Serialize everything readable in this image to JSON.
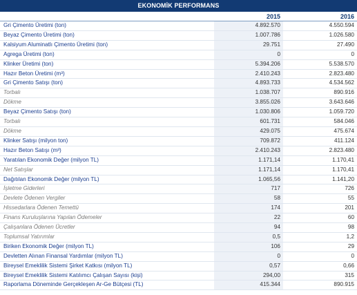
{
  "header": {
    "title": "EKONOMİK PERFORMANS",
    "col_2015": "2015",
    "col_2016": "2016"
  },
  "rows": [
    {
      "label": "Gri Çimento Üretimi (ton)",
      "v2015": "4.892.570",
      "v2016": "4.550.594",
      "kind": "main"
    },
    {
      "label": "Beyaz Çimento Üretimi (ton)",
      "v2015": "1.007.786",
      "v2016": "1.026.580",
      "kind": "main"
    },
    {
      "label": "Kalsiyum Aluminatlı Çimento Üretimi (ton)",
      "v2015": "29.751",
      "v2016": "27.490",
      "kind": "main"
    },
    {
      "label": "Agrega Üretimi (ton)",
      "v2015": "0",
      "v2016": "0",
      "kind": "main"
    },
    {
      "label": "Klinker Üretimi (ton)",
      "v2015": "5.394.206",
      "v2016": "5.538.570",
      "kind": "main"
    },
    {
      "label": "Hazır Beton Üretimi (m³)",
      "v2015": "2.410.243",
      "v2016": "2.823.480",
      "kind": "main"
    },
    {
      "label": "Gri Çimento Satışı (ton)",
      "v2015": "4.893.733",
      "v2016": "4.534.562",
      "kind": "main"
    },
    {
      "label": "Torbalı",
      "v2015": "1.038.707",
      "v2016": "890.916",
      "kind": "sub"
    },
    {
      "label": "Dökme",
      "v2015": "3.855.026",
      "v2016": "3.643.646",
      "kind": "sub"
    },
    {
      "label": "Beyaz Çimento Satışı (ton)",
      "v2015": "1.030.806",
      "v2016": "1.059.720",
      "kind": "main"
    },
    {
      "label": "Torbalı",
      "v2015": "601.731",
      "v2016": "584.046",
      "kind": "sub"
    },
    {
      "label": "Dökme",
      "v2015": "429.075",
      "v2016": "475.674",
      "kind": "sub"
    },
    {
      "label": "Klinker Satışı (milyon ton)",
      "v2015": "709.872",
      "v2016": "411.124",
      "kind": "main"
    },
    {
      "label": "Hazır Beton Satışı (m³)",
      "v2015": "2.410.243",
      "v2016": "2.823.480",
      "kind": "main"
    },
    {
      "label": "Yaratılan Ekonomik Değer (milyon TL)",
      "v2015": "1.171,14",
      "v2016": "1.170,41",
      "kind": "main"
    },
    {
      "label": "Net Satışlar",
      "v2015": "1.171,14",
      "v2016": "1.170,41",
      "kind": "sub"
    },
    {
      "label": "Dağıtılan Ekonomik Değer (milyon TL)",
      "v2015": "1.065,56",
      "v2016": "1.141,20",
      "kind": "main"
    },
    {
      "label": "İşletme Giderleri",
      "v2015": "717",
      "v2016": "726",
      "kind": "sub"
    },
    {
      "label": "Devlete Ödenen Vergiler",
      "v2015": "58",
      "v2016": "55",
      "kind": "sub"
    },
    {
      "label": "Hissedarlara Ödenen Temettü",
      "v2015": "174",
      "v2016": "201",
      "kind": "sub"
    },
    {
      "label": "Finans Kuruluşlarına Yapılan Ödemeler",
      "v2015": "22",
      "v2016": "60",
      "kind": "sub"
    },
    {
      "label": "Çalışanlara Ödenen Ücretler",
      "v2015": "94",
      "v2016": "98",
      "kind": "sub"
    },
    {
      "label": "Toplumsal Yatırımlar",
      "v2015": "0,5",
      "v2016": "1,2",
      "kind": "sub"
    },
    {
      "label": "Biriken Ekonomik Değer (milyon TL)",
      "v2015": "106",
      "v2016": "29",
      "kind": "main"
    },
    {
      "label": "Devletten Alınan Finansal Yardımlar (milyon TL)",
      "v2015": "0",
      "v2016": "0",
      "kind": "main"
    },
    {
      "label": "Bireysel Emeklilik Sistemi Şirket Katkısı (milyon TL)",
      "v2015": "0,57",
      "v2016": "0,66",
      "kind": "main"
    },
    {
      "label": "Bireysel Emeklilik Sistemi Katılımcı Çalışan Sayısı (kişi)",
      "v2015": "294,00",
      "v2016": "315",
      "kind": "main"
    },
    {
      "label": "Raporlama Döneminde Gerçekleşen Ar-Ge Bütçesi (TL)",
      "v2015": "415.344",
      "v2016": "890.915",
      "kind": "main"
    }
  ]
}
